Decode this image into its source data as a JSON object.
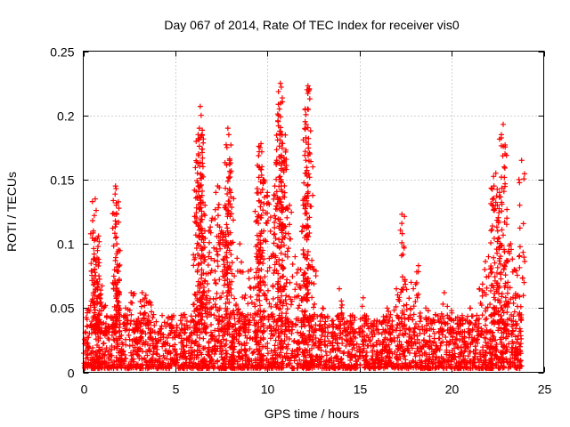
{
  "chart_data": {
    "type": "scatter",
    "title": "Day 067 of 2014, Rate Of TEC Index for receiver vis0",
    "xlabel": "GPS time / hours",
    "ylabel": "ROTI / TECUs",
    "xlim": [
      0,
      25
    ],
    "ylim": [
      0,
      0.25
    ],
    "grid": true,
    "legend": "none",
    "marker": "+",
    "color": "#ff0000",
    "x_ticks": [
      "0",
      "5",
      "10",
      "15",
      "20",
      "25"
    ],
    "y_ticks": [
      "0",
      "0.05",
      "0.1",
      "0.15",
      "0.2",
      "0.25"
    ],
    "series": [
      {
        "name": "ROTI",
        "points": [
          [
            0.3,
            0.049
          ],
          [
            0.5,
            0.057
          ],
          [
            0.55,
            0.11
          ],
          [
            0.6,
            0.122
          ],
          [
            0.65,
            0.135
          ],
          [
            0.7,
            0.126
          ],
          [
            0.75,
            0.089
          ],
          [
            0.8,
            0.098
          ],
          [
            0.85,
            0.075
          ],
          [
            0.9,
            0.06
          ],
          [
            1.2,
            0.052
          ],
          [
            1.5,
            0.042
          ],
          [
            1.75,
            0.145
          ],
          [
            1.78,
            0.143
          ],
          [
            1.8,
            0.123
          ],
          [
            1.82,
            0.1
          ],
          [
            1.85,
            0.084
          ],
          [
            1.9,
            0.063
          ],
          [
            2.3,
            0.05
          ],
          [
            2.6,
            0.062
          ],
          [
            2.9,
            0.035
          ],
          [
            3.2,
            0.062
          ],
          [
            3.4,
            0.06
          ],
          [
            3.6,
            0.055
          ],
          [
            4.2,
            0.03
          ],
          [
            4.8,
            0.036
          ],
          [
            5.5,
            0.045
          ],
          [
            6.1,
            0.06
          ],
          [
            6.15,
            0.128
          ],
          [
            6.2,
            0.155
          ],
          [
            6.25,
            0.17
          ],
          [
            6.3,
            0.19
          ],
          [
            6.35,
            0.207
          ],
          [
            6.4,
            0.2
          ],
          [
            6.45,
            0.185
          ],
          [
            6.5,
            0.16
          ],
          [
            6.6,
            0.11
          ],
          [
            6.8,
            0.09
          ],
          [
            7.0,
            0.12
          ],
          [
            7.2,
            0.14
          ],
          [
            7.3,
            0.145
          ],
          [
            7.5,
            0.11
          ],
          [
            7.7,
            0.13
          ],
          [
            7.8,
            0.175
          ],
          [
            7.85,
            0.19
          ],
          [
            7.9,
            0.185
          ],
          [
            7.95,
            0.165
          ],
          [
            8.0,
            0.14
          ],
          [
            8.2,
            0.075
          ],
          [
            8.5,
            0.1
          ],
          [
            8.8,
            0.06
          ],
          [
            9.1,
            0.08
          ],
          [
            9.4,
            0.09
          ],
          [
            9.5,
            0.14
          ],
          [
            9.55,
            0.16
          ],
          [
            9.6,
            0.175
          ],
          [
            9.65,
            0.178
          ],
          [
            9.7,
            0.16
          ],
          [
            9.8,
            0.11
          ],
          [
            10.0,
            0.14
          ],
          [
            10.2,
            0.09
          ],
          [
            10.4,
            0.145
          ],
          [
            10.5,
            0.165
          ],
          [
            10.6,
            0.2
          ],
          [
            10.65,
            0.205
          ],
          [
            10.7,
            0.225
          ],
          [
            10.75,
            0.222
          ],
          [
            10.8,
            0.185
          ],
          [
            10.9,
            0.165
          ],
          [
            11.0,
            0.173
          ],
          [
            11.2,
            0.13
          ],
          [
            11.5,
            0.09
          ],
          [
            11.8,
            0.08
          ],
          [
            12.0,
            0.135
          ],
          [
            12.05,
            0.155
          ],
          [
            12.1,
            0.193
          ],
          [
            12.15,
            0.22
          ],
          [
            12.2,
            0.223
          ],
          [
            12.3,
            0.17
          ],
          [
            12.5,
            0.08
          ],
          [
            13.0,
            0.05
          ],
          [
            13.5,
            0.04
          ],
          [
            13.9,
            0.065
          ],
          [
            14.5,
            0.04
          ],
          [
            15.2,
            0.058
          ],
          [
            15.8,
            0.04
          ],
          [
            16.5,
            0.05
          ],
          [
            17.0,
            0.065
          ],
          [
            17.3,
            0.123
          ],
          [
            17.4,
            0.098
          ],
          [
            17.8,
            0.07
          ],
          [
            18.2,
            0.083
          ],
          [
            18.6,
            0.05
          ],
          [
            19.0,
            0.04
          ],
          [
            19.6,
            0.062
          ],
          [
            20.0,
            0.048
          ],
          [
            20.5,
            0.04
          ],
          [
            21.0,
            0.05
          ],
          [
            21.5,
            0.065
          ],
          [
            21.8,
            0.08
          ],
          [
            22.0,
            0.09
          ],
          [
            22.2,
            0.13
          ],
          [
            22.3,
            0.145
          ],
          [
            22.4,
            0.155
          ],
          [
            22.5,
            0.11
          ],
          [
            22.6,
            0.14
          ],
          [
            22.7,
            0.185
          ],
          [
            22.8,
            0.193
          ],
          [
            22.9,
            0.17
          ],
          [
            23.0,
            0.12
          ],
          [
            23.2,
            0.1
          ],
          [
            23.4,
            0.08
          ],
          [
            23.6,
            0.06
          ],
          [
            23.8,
            0.165
          ]
        ]
      }
    ],
    "dense_band": {
      "description": "dense near-continuous scatter of low ROTI values over the whole day",
      "x_range": [
        0.0,
        23.8
      ],
      "y_range": [
        0.003,
        0.045
      ]
    }
  }
}
